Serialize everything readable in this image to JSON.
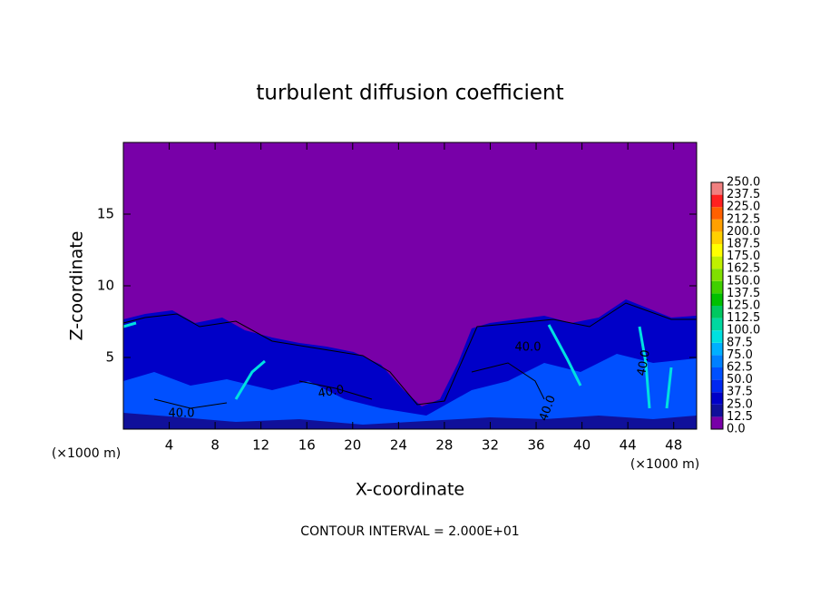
{
  "chart_data": {
    "type": "contour",
    "title": "turbulent diffusion coefficient",
    "x_label": "X-coordinate",
    "y_label": "Z-coordinate",
    "x_unit": "(×1000 m)",
    "footer": "CONTOUR INTERVAL = 2.000E+01",
    "xlim": [
      0,
      50
    ],
    "xticks": [
      4,
      8,
      12,
      16,
      20,
      24,
      28,
      32,
      36,
      40,
      44,
      48
    ],
    "ylim": [
      0,
      20
    ],
    "yticks": [
      5,
      10,
      15
    ],
    "contour_labels": [
      "40.0",
      "40.0",
      "40.0",
      "40.0",
      "40.0"
    ],
    "colorbar": {
      "levels": [
        {
          "value": 0,
          "label": "0.0"
        },
        12.5,
        {
          "value": 25,
          "label": "25.0"
        },
        37.5,
        {
          "value": 50,
          "label": "50.0"
        },
        62.5,
        {
          "value": 75,
          "label": "75.0"
        },
        87.5,
        {
          "value": 100,
          "label": "100.0"
        },
        112.5,
        {
          "value": 125,
          "label": "125.0"
        },
        137.5,
        {
          "value": 150,
          "label": "150.0"
        },
        162.5,
        {
          "value": 175,
          "label": "175.0"
        },
        187.5,
        {
          "value": 200,
          "label": "200.0"
        },
        212.5,
        {
          "value": 225,
          "label": "225.0"
        },
        237.5,
        {
          "value": 250,
          "label": "250.0"
        }
      ],
      "colors": [
        "#7800a8",
        "#10109a",
        "#0000c8",
        "#0028f0",
        "#0050ff",
        "#0080ff",
        "#00b0ff",
        "#00e0e0",
        "#00d8a0",
        "#00c860",
        "#00c000",
        "#40d000",
        "#80e000",
        "#c0f000",
        "#ffff00",
        "#ffd000",
        "#ffa000",
        "#ff6000",
        "#ff2020",
        "#f08080"
      ]
    }
  }
}
